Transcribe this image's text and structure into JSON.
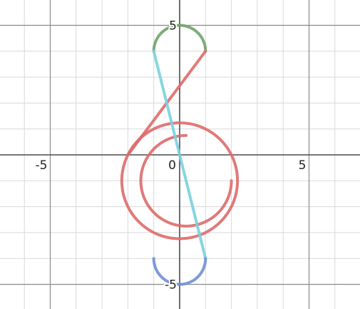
{
  "chart_data": {
    "type": "line",
    "xlim": [
      -7,
      7
    ],
    "ylim": [
      -5.9,
      6.0
    ],
    "grid": true,
    "minor_step": 1,
    "major_step": 5,
    "x_tick_labels": [
      {
        "value": -5,
        "label": "-5"
      },
      {
        "value": 0,
        "label": "0"
      },
      {
        "value": 5,
        "label": "5"
      }
    ],
    "y_tick_labels": [
      {
        "value": 5,
        "label": "5"
      },
      {
        "value": -5,
        "label": "-5"
      }
    ],
    "series": [
      {
        "color": "#6fa46a",
        "kind": "arc",
        "center": [
          0,
          4
        ],
        "radius": 1,
        "start_deg": 180,
        "end_deg": 0
      },
      {
        "color": "#dd6b6b",
        "kind": "polyline",
        "points": [
          [
            1,
            4
          ],
          [
            -2,
            0
          ]
        ]
      },
      {
        "color": "#dd6b6b",
        "kind": "arc",
        "center": [
          0,
          -1
        ],
        "radius": 2.236,
        "start_deg": 153.4,
        "end_deg": -270
      },
      {
        "color": "#dd6b6b",
        "kind": "arc",
        "center": [
          0.25,
          -1
        ],
        "radius": 1.75,
        "start_deg": 0,
        "end_deg": -270
      },
      {
        "color": "#7bd0df",
        "kind": "polyline",
        "points": [
          [
            -1,
            4
          ],
          [
            1,
            -4
          ]
        ]
      },
      {
        "color": "#6f8fd6",
        "kind": "arc",
        "center": [
          0,
          -4
        ],
        "radius": 1,
        "start_deg": 0,
        "end_deg": -180
      }
    ]
  }
}
